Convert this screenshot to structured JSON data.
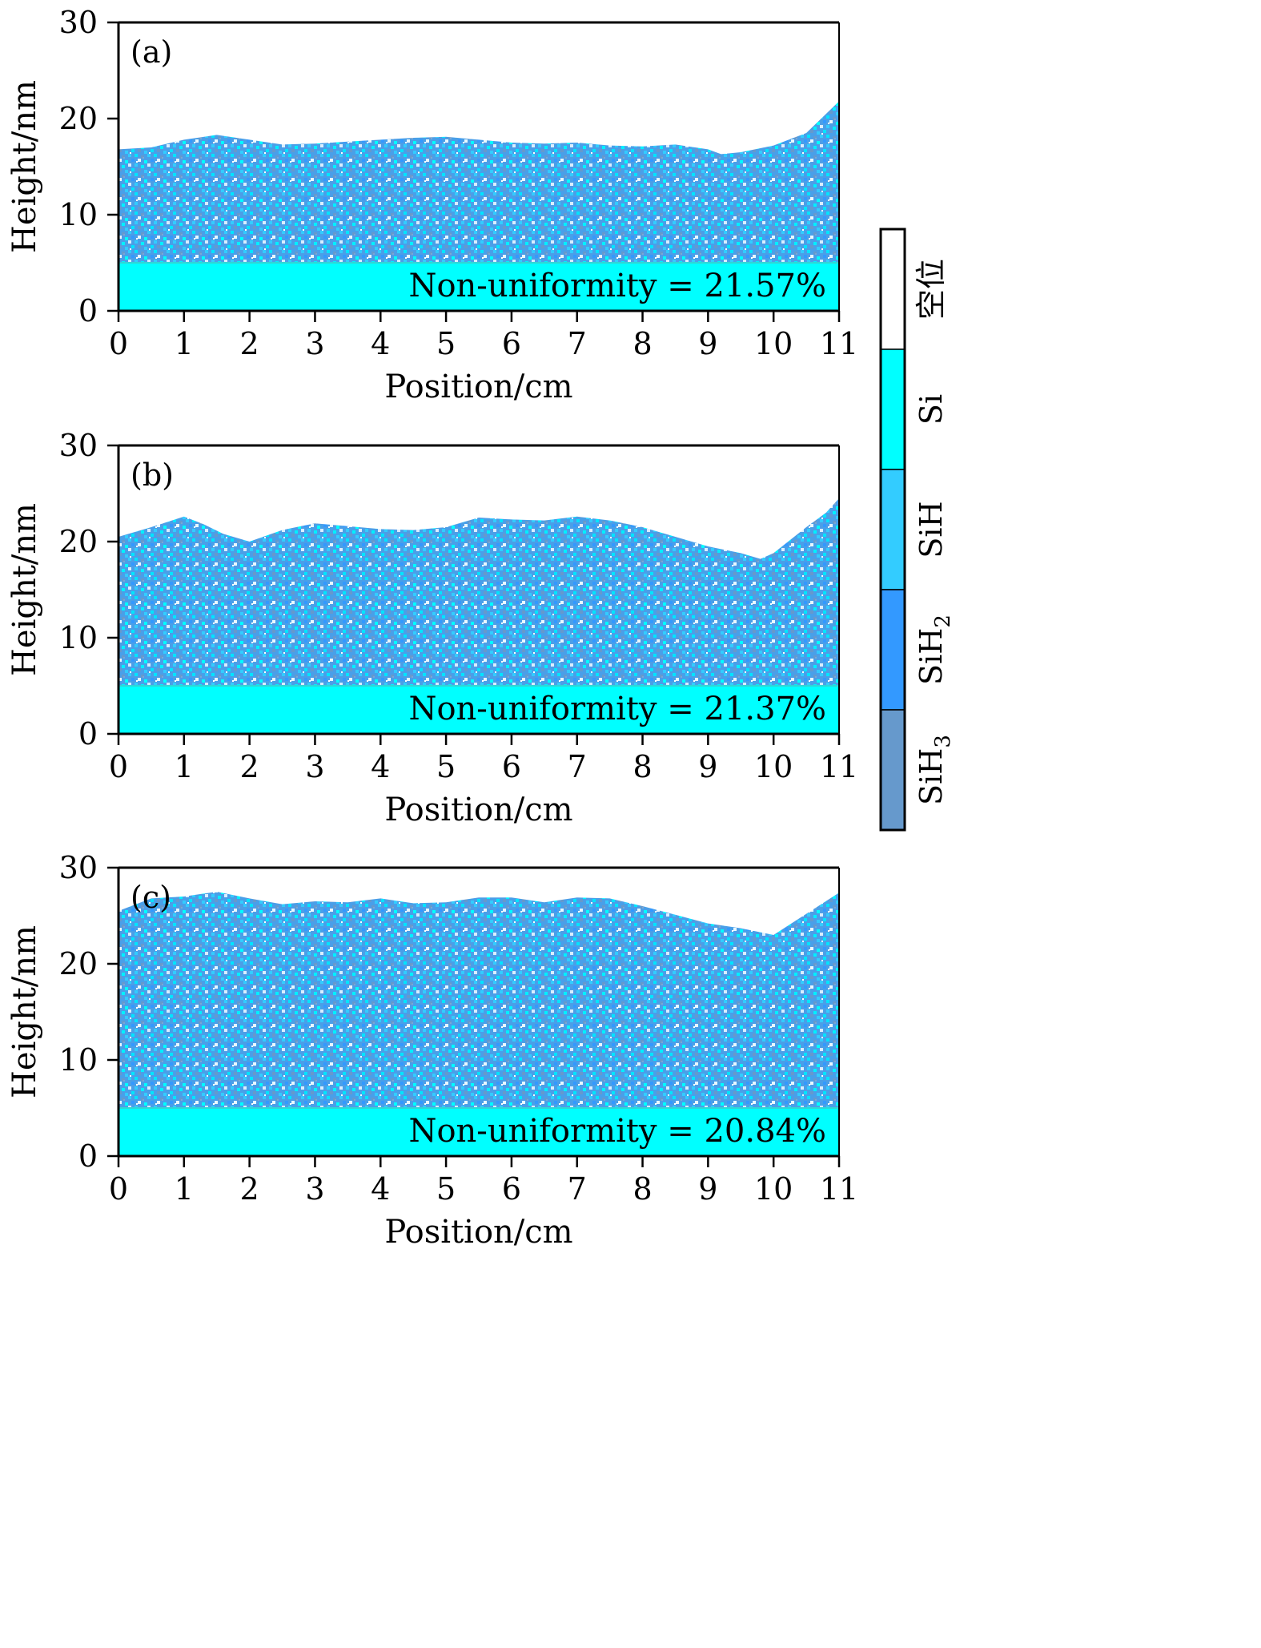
{
  "chart_data": {
    "type": "heatmap",
    "description_kind": "deposited film cross-section profiles",
    "panels": [
      {
        "label": "(a)",
        "xlabel": "Position/cm",
        "ylabel": "Height/nm",
        "xlim": [
          0,
          11
        ],
        "ylim": [
          0,
          30
        ],
        "xticks": [
          "0",
          "1",
          "2",
          "3",
          "4",
          "5",
          "6",
          "7",
          "8",
          "9",
          "10",
          "11"
        ],
        "yticks": [
          "0",
          "10",
          "20",
          "30"
        ],
        "substrate_top_nm": 5,
        "annotation": "Non-uniformity = 21.57%",
        "surface_profile": {
          "x": [
            0,
            0.5,
            1,
            1.5,
            2,
            2.5,
            3,
            3.5,
            4,
            4.5,
            5,
            5.5,
            6,
            6.5,
            7,
            7.5,
            8,
            8.5,
            9,
            9.2,
            9.5,
            10,
            10.5,
            11
          ],
          "y": [
            16.8,
            17,
            17.8,
            18.3,
            17.8,
            17.3,
            17.4,
            17.6,
            17.8,
            18,
            18.1,
            17.8,
            17.5,
            17.4,
            17.5,
            17.2,
            17.1,
            17.3,
            16.8,
            16.3,
            16.5,
            17.2,
            18.5,
            21.8
          ]
        }
      },
      {
        "label": "(b)",
        "xlabel": "Position/cm",
        "ylabel": "Height/nm",
        "xlim": [
          0,
          11
        ],
        "ylim": [
          0,
          30
        ],
        "xticks": [
          "0",
          "1",
          "2",
          "3",
          "4",
          "5",
          "6",
          "7",
          "8",
          "9",
          "10",
          "11"
        ],
        "yticks": [
          "0",
          "10",
          "20",
          "30"
        ],
        "substrate_top_nm": 5,
        "annotation": "Non-uniformity = 21.37%",
        "surface_profile": {
          "x": [
            0,
            0.5,
            1,
            1.3,
            1.6,
            2,
            2.5,
            3,
            3.5,
            4,
            4.5,
            5,
            5.5,
            6,
            6.5,
            7,
            7.5,
            8,
            8.5,
            9,
            9.5,
            9.8,
            10,
            10.5,
            10.8,
            11
          ],
          "y": [
            20.5,
            21.5,
            22.6,
            21.8,
            20.8,
            20,
            21.2,
            21.9,
            21.6,
            21.3,
            21.2,
            21.5,
            22.5,
            22.3,
            22.2,
            22.6,
            22.2,
            21.5,
            20.5,
            19.5,
            18.8,
            18.2,
            18.8,
            21.5,
            23,
            24.5
          ]
        }
      },
      {
        "label": "(c)",
        "xlabel": "Position/cm",
        "ylabel": "Height/nm",
        "xlim": [
          0,
          11
        ],
        "ylim": [
          0,
          30
        ],
        "xticks": [
          "0",
          "1",
          "2",
          "3",
          "4",
          "5",
          "6",
          "7",
          "8",
          "9",
          "10",
          "11"
        ],
        "yticks": [
          "0",
          "10",
          "20",
          "30"
        ],
        "substrate_top_nm": 5,
        "annotation": "Non-uniformity = 20.84%",
        "surface_profile": {
          "x": [
            0,
            0.5,
            1,
            1.5,
            2,
            2.5,
            3,
            3.5,
            4,
            4.5,
            5,
            5.5,
            6,
            6.5,
            7,
            7.5,
            8,
            8.5,
            9,
            9.5,
            10,
            10.5,
            11
          ],
          "y": [
            25.5,
            26.8,
            27,
            27.5,
            26.8,
            26.2,
            26.5,
            26.4,
            26.8,
            26.3,
            26.4,
            26.9,
            26.9,
            26.4,
            26.9,
            26.8,
            26,
            25.1,
            24.2,
            23.7,
            23,
            25.2,
            27.4
          ]
        }
      }
    ],
    "legend": {
      "placement": "right",
      "entries": [
        {
          "name": "空位",
          "color": "#ffffff"
        },
        {
          "name": "Si",
          "color": "#00ffff"
        },
        {
          "name": "SiH",
          "color": "#33ccff"
        },
        {
          "name": "SiH",
          "sub": "2",
          "color": "#3399ff"
        },
        {
          "name": "SiH",
          "sub": "3",
          "color": "#6699cc"
        }
      ]
    },
    "substrate_color": "#00ffff"
  }
}
